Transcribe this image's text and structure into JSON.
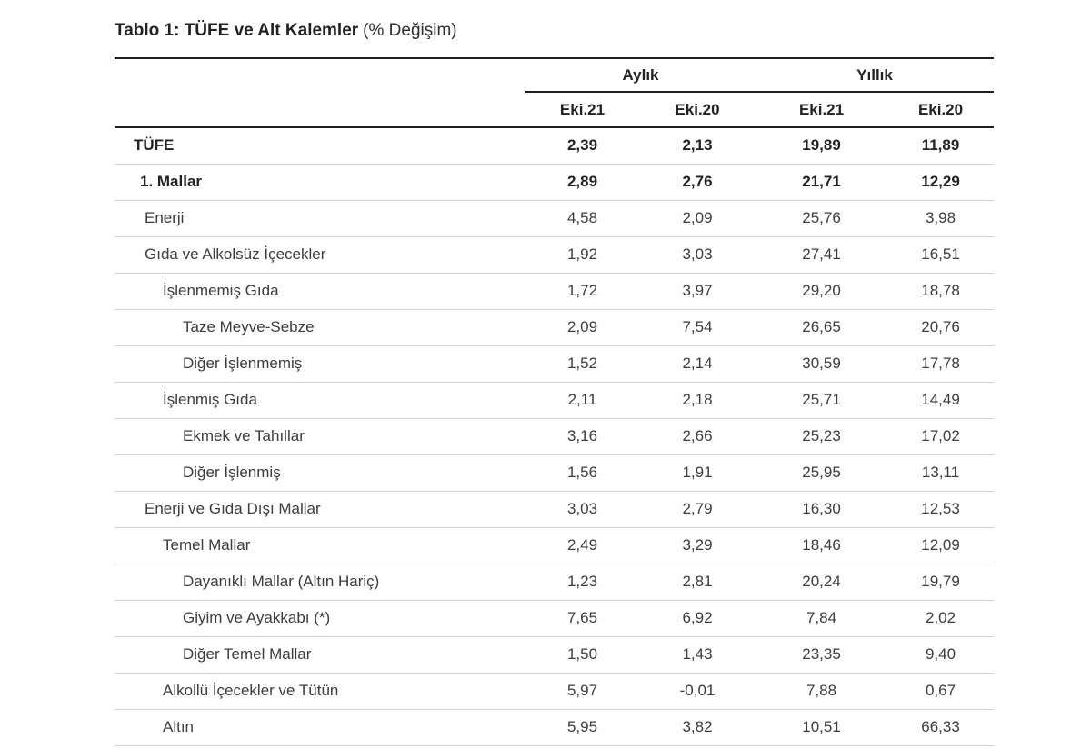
{
  "page": {
    "title_bold": "Tablo 1: TÜFE ve Alt Kalemler",
    "title_suffix": "(% Değişim)"
  },
  "chart_data": {
    "type": "table",
    "title": "Tablo 1: TÜFE ve Alt Kalemler (% Değişim)",
    "column_groups": [
      "Aylık",
      "Yıllık"
    ],
    "columns": [
      "Eki.21",
      "Eki.20",
      "Eki.21",
      "Eki.20"
    ],
    "rows": [
      {
        "label": "TÜFE",
        "level": 0,
        "bold": true,
        "values": [
          "2,39",
          "2,13",
          "19,89",
          "11,89"
        ]
      },
      {
        "label": "1. Mallar",
        "level": 1,
        "bold": true,
        "values": [
          "2,89",
          "2,76",
          "21,71",
          "12,29"
        ]
      },
      {
        "label": "Enerji",
        "level": 2,
        "bold": false,
        "values": [
          "4,58",
          "2,09",
          "25,76",
          "3,98"
        ]
      },
      {
        "label": "Gıda ve Alkolsüz İçecekler",
        "level": 2,
        "bold": false,
        "values": [
          "1,92",
          "3,03",
          "27,41",
          "16,51"
        ]
      },
      {
        "label": "İşlenmemiş Gıda",
        "level": 3,
        "bold": false,
        "values": [
          "1,72",
          "3,97",
          "29,20",
          "18,78"
        ]
      },
      {
        "label": "Taze Meyve-Sebze",
        "level": 4,
        "bold": false,
        "values": [
          "2,09",
          "7,54",
          "26,65",
          "20,76"
        ]
      },
      {
        "label": "Diğer İşlenmemiş",
        "level": 4,
        "bold": false,
        "values": [
          "1,52",
          "2,14",
          "30,59",
          "17,78"
        ]
      },
      {
        "label": "İşlenmiş Gıda",
        "level": 3,
        "bold": false,
        "values": [
          "2,11",
          "2,18",
          "25,71",
          "14,49"
        ]
      },
      {
        "label": "Ekmek ve Tahıllar",
        "level": 4,
        "bold": false,
        "values": [
          "3,16",
          "2,66",
          "25,23",
          "17,02"
        ]
      },
      {
        "label": "Diğer İşlenmiş",
        "level": 4,
        "bold": false,
        "values": [
          "1,56",
          "1,91",
          "25,95",
          "13,11"
        ]
      },
      {
        "label": "Enerji ve Gıda Dışı Mallar",
        "level": 2,
        "bold": false,
        "values": [
          "3,03",
          "2,79",
          "16,30",
          "12,53"
        ]
      },
      {
        "label": "Temel Mallar",
        "level": 3,
        "bold": false,
        "values": [
          "2,49",
          "3,29",
          "18,46",
          "12,09"
        ]
      },
      {
        "label": "Dayanıklı Mallar (Altın Hariç)",
        "level": 4,
        "bold": false,
        "values": [
          "1,23",
          "2,81",
          "20,24",
          "19,79"
        ]
      },
      {
        "label": "Giyim ve Ayakkabı (*)",
        "level": 4,
        "bold": false,
        "values": [
          "7,65",
          "6,92",
          "7,84",
          "2,02"
        ]
      },
      {
        "label": "Diğer Temel Mallar",
        "level": 4,
        "bold": false,
        "values": [
          "1,50",
          "1,43",
          "23,35",
          "9,40"
        ]
      },
      {
        "label": "Alkollü İçecekler ve Tütün",
        "level": 3,
        "bold": false,
        "values": [
          "5,97",
          "-0,01",
          "7,88",
          "0,67"
        ]
      },
      {
        "label": "Altın",
        "level": 3,
        "bold": false,
        "values": [
          "5,95",
          "3,82",
          "10,51",
          "66,33"
        ]
      }
    ]
  },
  "colors": {
    "text": "#3c3c3c",
    "text_bold": "#222222",
    "border_dark": "#1f1f1f",
    "border_light": "#d5d5d5",
    "background": "#ffffff"
  }
}
